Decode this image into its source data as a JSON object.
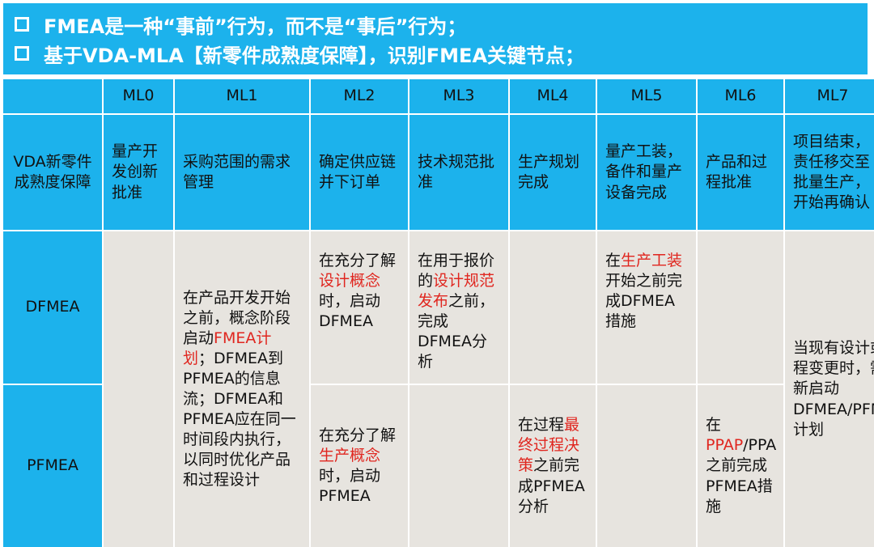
{
  "banner": {
    "line1": "FMEA是一种“事前”行为，而不是“事后”行为；",
    "line2": "基于VDA-MLA【新零件成熟度保障】，识别FMEA关键节点；"
  },
  "table": {
    "levels": [
      "ML0",
      "ML1",
      "ML2",
      "ML3",
      "ML4",
      "ML5",
      "ML6",
      "ML7"
    ],
    "row_header": "VDA新零件成熟度保障",
    "milestones": {
      "ml0": "量产开发创新批准",
      "ml1": "采购范围的需求管理",
      "ml2": "确定供应链并下订单",
      "ml3": "技术规范批准",
      "ml4": "生产规划完成",
      "ml5": "量产工装，备件和量产设备完成",
      "ml6": "产品和过程批准",
      "ml7": "项目结束，责任移交至批量生产，开始再确认"
    },
    "dfmea_label": "DFMEA",
    "pfmea_label": "PFMEA",
    "ml1_note": {
      "a": "在产品开发开始之前，概念阶段启动",
      "red": "FMEA计划",
      "b": "；DFMEA到PFMEA的信息流；DFMEA和PFMEA应在同一时间段内执行，以同时优化产品和过程设计"
    },
    "ml2_dfmea": {
      "a": "在充分了解",
      "red": "设计概念",
      "b": "时，启动DFMEA"
    },
    "ml3_dfmea": {
      "a": "在用于报价的",
      "red": "设计规范发布",
      "b": "之前，完成DFMEA分析"
    },
    "ml5_dfmea": {
      "a": "在",
      "red": "生产工装",
      "b": "开始之前完成DFMEA措施"
    },
    "ml7_note": "当现有设计或过程变更时，需重新启动DFMEA/PFMEA计划",
    "ml2_pfmea": {
      "a": "在充分了解",
      "red": "生产概念",
      "b": "时，启动PFMEA"
    },
    "ml4_pfmea": {
      "a": "在过程",
      "red": "最终过程决策",
      "b": "之前完成PFMEA分析"
    },
    "ml6_pfmea": {
      "a": "在",
      "red": "PPAP",
      "b": "/PPA之前完成PFMEA措施"
    }
  },
  "colors": {
    "header_blue": "#1cb2ec",
    "body_gray": "#e7e4df",
    "highlight_red": "#e0261f"
  }
}
